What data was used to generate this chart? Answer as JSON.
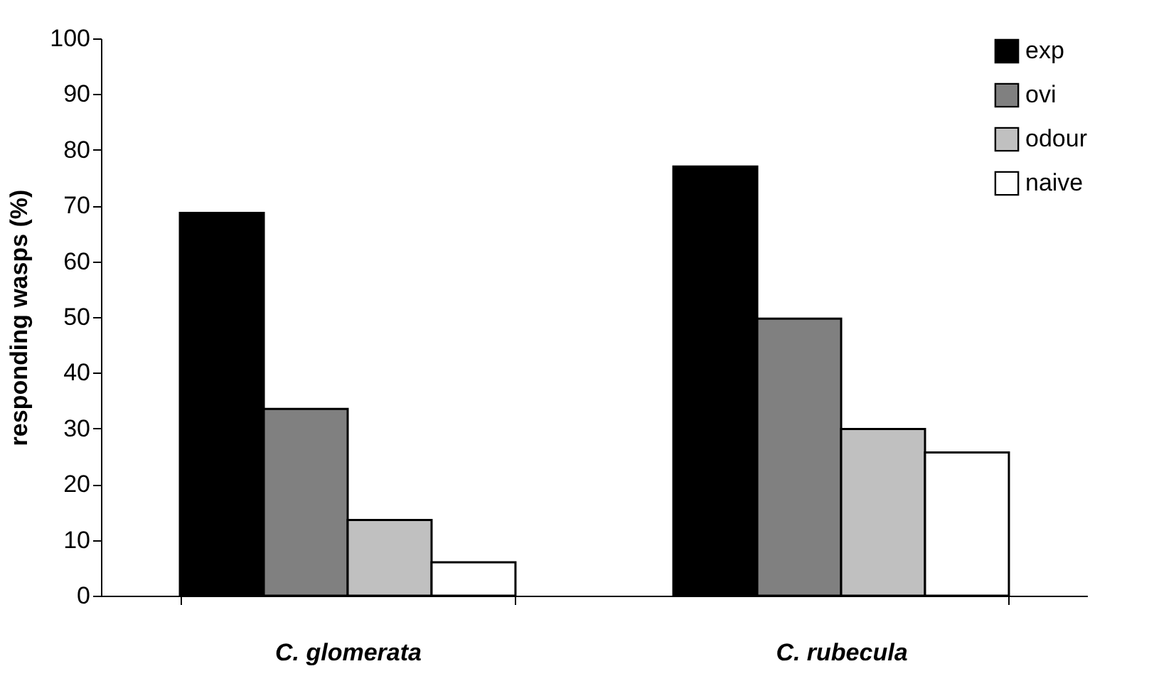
{
  "chart_data": {
    "type": "bar",
    "ylabel": "responding wasps (%)",
    "categories": [
      "C. glomerata",
      "C. rubecula"
    ],
    "series": [
      {
        "name": "exp",
        "color": "#000000",
        "values": [
          68.7,
          77.0
        ]
      },
      {
        "name": "ovi",
        "color": "#808080",
        "values": [
          33.5,
          49.7
        ]
      },
      {
        "name": "odour",
        "color": "#c0c0c0",
        "values": [
          13.6,
          29.9
        ]
      },
      {
        "name": "naive",
        "color": "#ffffff",
        "values": [
          6.0,
          25.7
        ]
      }
    ],
    "ylim": [
      0,
      100
    ],
    "yticks": [
      0,
      10,
      20,
      30,
      40,
      50,
      60,
      70,
      80,
      90,
      100
    ],
    "legend": "top right",
    "grid": false
  }
}
